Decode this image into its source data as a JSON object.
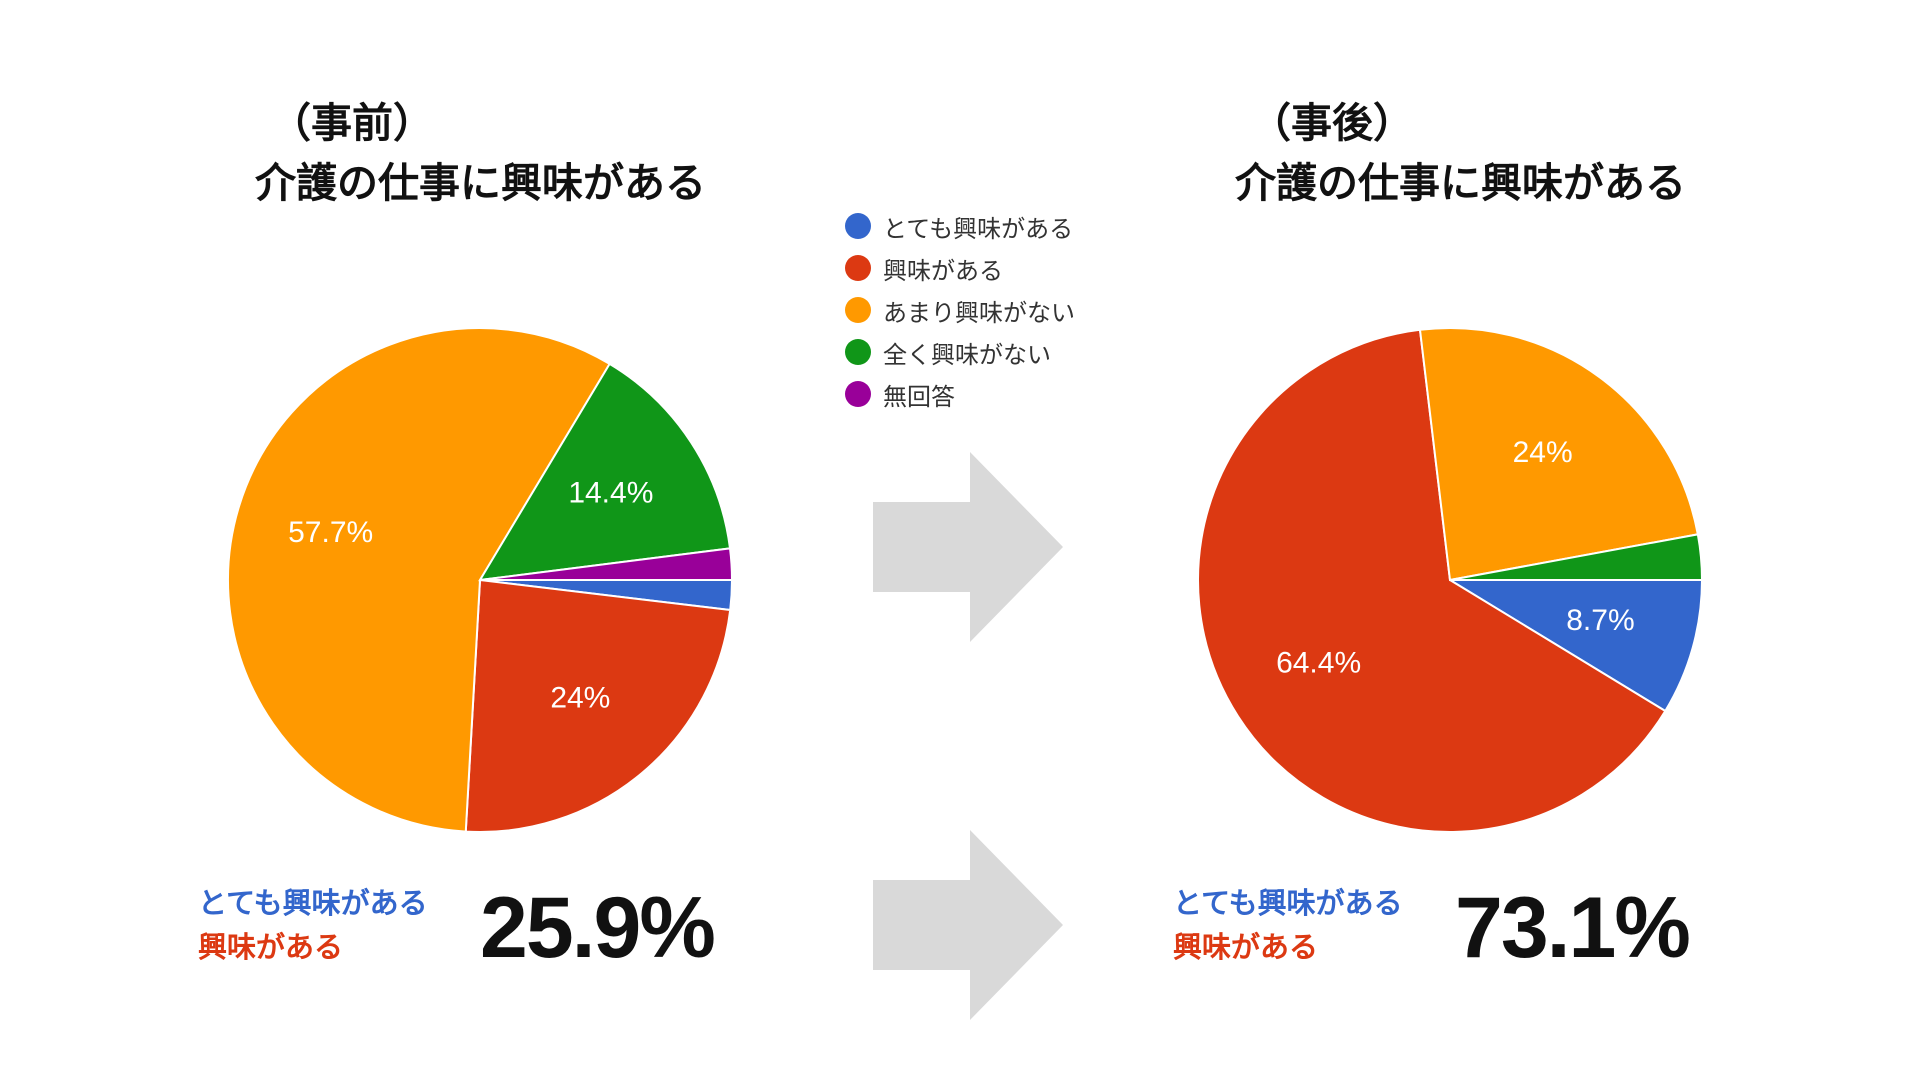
{
  "colors": {
    "very_interested": "#3366CC",
    "interested": "#DC3912",
    "not_very_interested": "#FF9900",
    "not_at_all_interested": "#109618",
    "no_answer": "#990099",
    "arrow": "#D9D9D9"
  },
  "legend": [
    {
      "label": "とても興味がある",
      "color": "#3366CC"
    },
    {
      "label": "興味がある",
      "color": "#DC3912"
    },
    {
      "label": "あまり興味がない",
      "color": "#FF9900"
    },
    {
      "label": "全く興味がない",
      "color": "#109618"
    },
    {
      "label": "無回答",
      "color": "#990099"
    }
  ],
  "before": {
    "title_prefix": "（事前）",
    "title": "介護の仕事に興味がある",
    "summary_label_1": "とても興味がある",
    "summary_label_2": "興味がある",
    "summary_value": "25.9%"
  },
  "after": {
    "title_prefix": "（事後）",
    "title": "介護の仕事に興味がある",
    "summary_label_1": "とても興味がある",
    "summary_label_2": "興味がある",
    "summary_value": "73.1%"
  },
  "icons": {
    "arrow_top": "right-arrow-icon",
    "arrow_bottom": "right-arrow-icon"
  },
  "chart_data": [
    {
      "type": "pie",
      "title": "介護の仕事に興味がある",
      "categories": [
        "とても興味がある",
        "興味がある",
        "あまり興味がない",
        "全く興味がない",
        "無回答"
      ],
      "values": [
        1.9,
        24.0,
        57.7,
        14.4,
        2.0
      ],
      "data_labels": [
        "",
        "24%",
        "57.7%",
        "14.4%",
        ""
      ],
      "colors": [
        "#3366CC",
        "#DC3912",
        "#FF9900",
        "#109618",
        "#990099"
      ]
    },
    {
      "type": "pie",
      "title": "介護の仕事に興味がある",
      "categories": [
        "とても興味がある",
        "興味がある",
        "あまり興味がない",
        "全く興味がない",
        "無回答"
      ],
      "values": [
        8.7,
        64.4,
        24.0,
        2.9,
        0
      ],
      "data_labels": [
        "8.7%",
        "64.4%",
        "24%",
        "",
        ""
      ],
      "colors": [
        "#3366CC",
        "#DC3912",
        "#FF9900",
        "#109618",
        "#990099"
      ]
    }
  ]
}
